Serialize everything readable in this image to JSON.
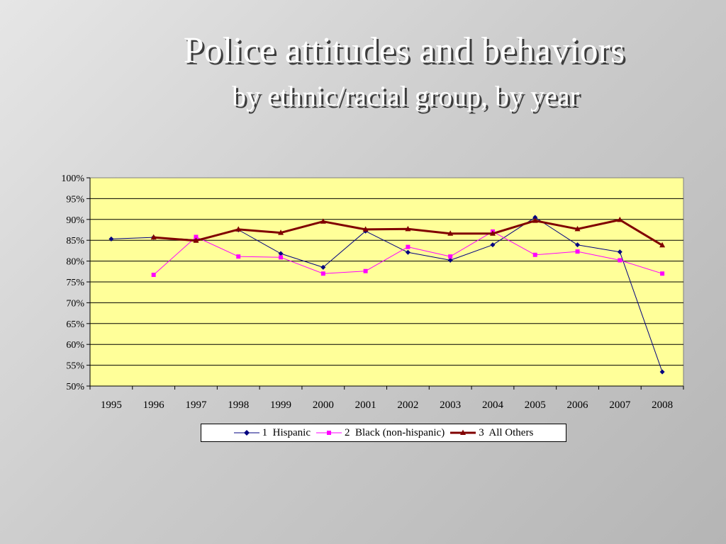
{
  "slide": {
    "title": "Police attitudes and behaviors",
    "subtitle": "by ethnic/racial group, by year"
  },
  "chart_data": {
    "type": "line",
    "categories": [
      "1995",
      "1996",
      "1997",
      "1998",
      "1999",
      "2000",
      "2001",
      "2002",
      "2003",
      "2004",
      "2005",
      "2006",
      "2007",
      "2008"
    ],
    "ylim": [
      0.5,
      1.0
    ],
    "yticks": [
      "100%",
      "95%",
      "90%",
      "85%",
      "80%",
      "75%",
      "70%",
      "65%",
      "60%",
      "55%",
      "50%"
    ],
    "grid": true,
    "plot_background": "#ffff99",
    "legend_position": "bottom",
    "series": [
      {
        "name": "1  Hispanic",
        "color": "#000080",
        "marker": "diamond",
        "values": [
          0.853,
          0.857,
          0.851,
          0.875,
          0.818,
          0.785,
          0.872,
          0.821,
          0.802,
          0.839,
          0.905,
          0.839,
          0.822,
          0.534
        ]
      },
      {
        "name": "2  Black (non-hispanic)",
        "color": "#ff00ff",
        "marker": "square",
        "values": [
          null,
          0.767,
          0.858,
          0.811,
          0.809,
          0.77,
          0.776,
          0.834,
          0.811,
          0.871,
          0.815,
          0.823,
          0.802,
          0.77
        ]
      },
      {
        "name": "3  All Others",
        "color": "#800000",
        "marker": "triangle",
        "values": [
          null,
          0.857,
          0.849,
          0.876,
          0.868,
          0.895,
          0.876,
          0.877,
          0.866,
          0.866,
          0.897,
          0.877,
          0.899,
          0.838
        ]
      }
    ]
  }
}
